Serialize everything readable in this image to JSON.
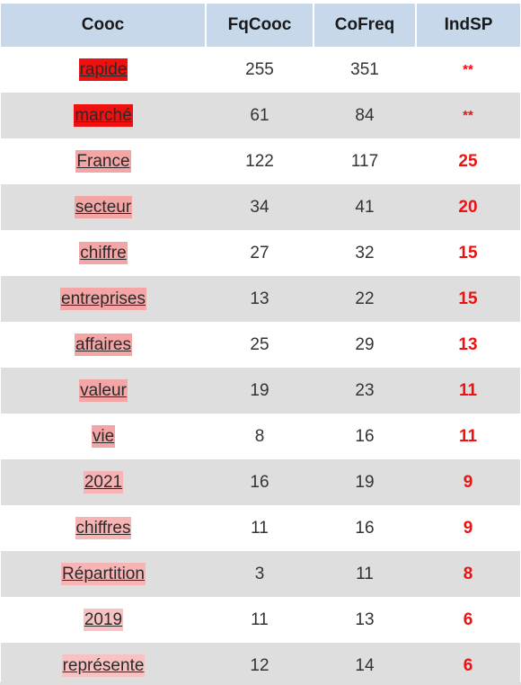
{
  "table": {
    "headers": [
      "Cooc",
      "FqCooc",
      "CoFreq",
      "IndSP"
    ],
    "rows": [
      {
        "word": "rapide",
        "fq": "255",
        "co": "351",
        "ind": "**",
        "bg": "#f01010"
      },
      {
        "word": "marché",
        "fq": "61",
        "co": "84",
        "ind": "**",
        "bg": "#f01010"
      },
      {
        "word": "France",
        "fq": "122",
        "co": "117",
        "ind": "25",
        "bg": "#f4a6a6"
      },
      {
        "word": "secteur",
        "fq": "34",
        "co": "41",
        "ind": "20",
        "bg": "#f4a6a6"
      },
      {
        "word": "chiffre",
        "fq": "27",
        "co": "32",
        "ind": "15",
        "bg": "#f4a6a6"
      },
      {
        "word": "entreprises",
        "fq": "13",
        "co": "22",
        "ind": "15",
        "bg": "#f4a6a6"
      },
      {
        "word": "affaires",
        "fq": "25",
        "co": "29",
        "ind": "13",
        "bg": "#f4a6a6"
      },
      {
        "word": "valeur",
        "fq": "19",
        "co": "23",
        "ind": "11",
        "bg": "#f4a6a6"
      },
      {
        "word": "vie",
        "fq": "8",
        "co": "16",
        "ind": "11",
        "bg": "#f4a6a6"
      },
      {
        "word": "2021",
        "fq": "16",
        "co": "19",
        "ind": "9",
        "bg": "#f6b4b4"
      },
      {
        "word": "chiffres",
        "fq": "11",
        "co": "16",
        "ind": "9",
        "bg": "#f6b4b4"
      },
      {
        "word": "Répartition",
        "fq": "3",
        "co": "11",
        "ind": "8",
        "bg": "#f6b4b4"
      },
      {
        "word": "2019",
        "fq": "11",
        "co": "13",
        "ind": "6",
        "bg": "#f8c2c2"
      },
      {
        "word": "représente",
        "fq": "12",
        "co": "14",
        "ind": "6",
        "bg": "#f8c2c2"
      }
    ]
  },
  "colors": {
    "header_bg": "#c6d8ea",
    "alt_row_bg": "#dedede",
    "indsp_text": "#ee1111",
    "strong_highlight": "#f01010",
    "light_highlight": "#f4a6a6"
  }
}
